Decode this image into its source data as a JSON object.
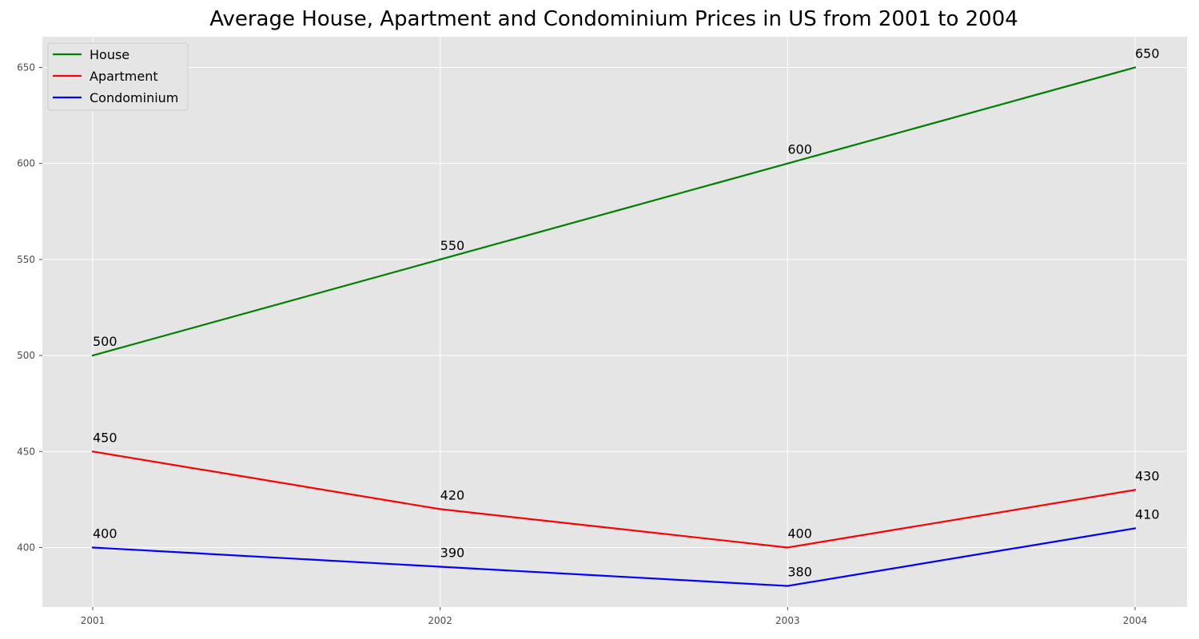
{
  "chart_data": {
    "type": "line",
    "title": "Average House, Apartment and Condominium Prices in US from 2001 to 2004",
    "xlabel": "",
    "ylabel": "",
    "categories": [
      "2001",
      "2002",
      "2003",
      "2004"
    ],
    "series": [
      {
        "name": "House",
        "values": [
          500,
          550,
          600,
          650
        ],
        "color": "#008000"
      },
      {
        "name": "Apartment",
        "values": [
          450,
          420,
          400,
          430
        ],
        "color": "#ff0000"
      },
      {
        "name": "Condominium",
        "values": [
          400,
          390,
          380,
          410
        ],
        "color": "#0000ff"
      }
    ],
    "yticks": [
      400,
      450,
      500,
      550,
      600,
      650
    ],
    "ylim": [
      369,
      666
    ],
    "grid": true,
    "legend_position": "top-left"
  }
}
